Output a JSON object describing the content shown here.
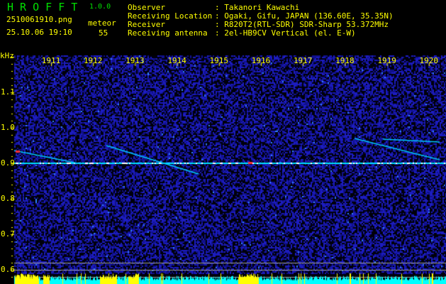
{
  "header": {
    "app_name": "H R O F F T",
    "version": "1.0.0",
    "filename": "2510061910.png",
    "datetime": "25.10.06 19:10",
    "meteor_label": "meteor",
    "meteor_count": "55",
    "info": [
      {
        "label": "Observer",
        "value": ": Takanori Kawachi"
      },
      {
        "label": "Receiving Location",
        "value": ": Ogaki, Gifu, JAPAN (136.60E, 35.35N)"
      },
      {
        "label": "Receiver",
        "value": ": R820T2(RTL-SDR) SDR-Sharp 53.372MHz"
      },
      {
        "label": "Receiving antenna",
        "value": ": 2el-HB9CV Vertical (el. E-W)"
      }
    ]
  },
  "spectrogram": {
    "y_unit": "kHz",
    "x_ticks": [
      "1911",
      "1912",
      "1913",
      "1914",
      "1915",
      "1916",
      "1917",
      "1918",
      "1919",
      "1920"
    ],
    "y_ticks": [
      "1.1",
      "1.0",
      "0.9",
      "0.8",
      "0.7",
      "0.6"
    ],
    "colors": {
      "background": "#000010",
      "noise": "#1a1aa0",
      "carrier": "#00ffff",
      "label": "#ffff00",
      "level_high": "#ffff00",
      "level_low": "#00ffff"
    }
  }
}
